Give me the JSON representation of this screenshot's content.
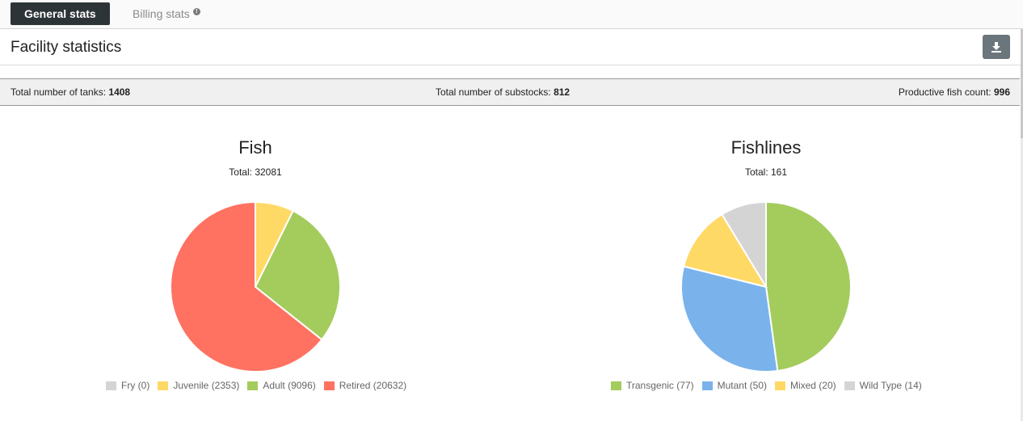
{
  "tabs": {
    "general_label": "General stats",
    "billing_label": "Billing stats",
    "billing_info_glyph": "!"
  },
  "header": {
    "title": "Facility statistics",
    "download_icon": "download-icon"
  },
  "stats": {
    "tanks_label": "Total number of tanks:",
    "tanks_value": "1408",
    "substocks_label": "Total number of substocks:",
    "substocks_value": "812",
    "productive_label": "Productive fish count:",
    "productive_value": "996"
  },
  "chart_data": [
    {
      "type": "pie",
      "title": "Fish",
      "subtitle": "Total: 32081",
      "legend_position": "bottom",
      "slices": [
        {
          "label": "Fry (0)",
          "value": 0,
          "color": "#d4d4d4"
        },
        {
          "label": "Juvenile (2353)",
          "value": 2353,
          "color": "#ffd966"
        },
        {
          "label": "Adult (9096)",
          "value": 9096,
          "color": "#a3cc5c"
        },
        {
          "label": "Retired (20632)",
          "value": 20632,
          "color": "#ff7261"
        }
      ]
    },
    {
      "type": "pie",
      "title": "Fishlines",
      "subtitle": "Total: 161",
      "legend_position": "bottom",
      "slices": [
        {
          "label": "Transgenic (77)",
          "value": 77,
          "color": "#a3cc5c"
        },
        {
          "label": "Mutant (50)",
          "value": 50,
          "color": "#7ab3eb"
        },
        {
          "label": "Mixed (20)",
          "value": 20,
          "color": "#ffd966"
        },
        {
          "label": "Wild Type (14)",
          "value": 14,
          "color": "#d4d4d4"
        }
      ]
    }
  ]
}
